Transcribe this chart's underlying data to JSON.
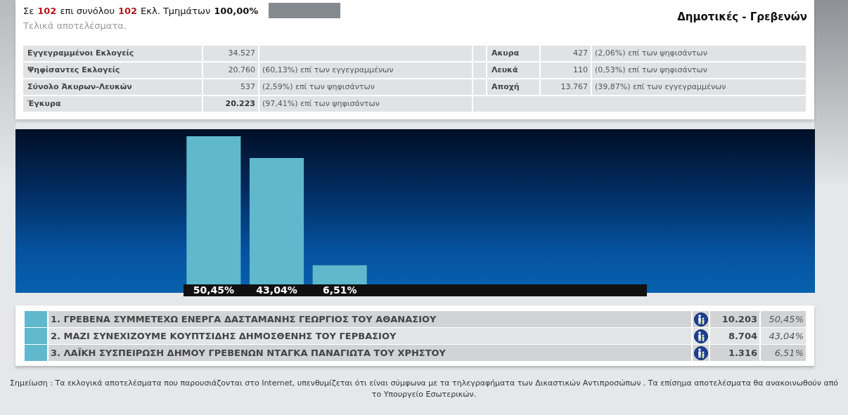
{
  "chart_data": {
    "type": "bar",
    "title": "Δημοτικές - Γρεβενών",
    "subtitle": "Τελικά αποτελέσματα.",
    "categories": [
      null,
      null,
      null
    ],
    "values": [
      50.45,
      43.04,
      6.51
    ],
    "color": "#60b8cd",
    "value_labels": [
      "50,45%",
      "43,04%",
      "6,51%"
    ],
    "tick_labels": false,
    "annotations": [
      "Σε",
      "102",
      "επι συνόλου",
      "102",
      "Εκλ. Τμημάτων",
      "100,00%",
      "Εγγεγραμμένοι Εκλογείς",
      "34.527",
      "Ψηφίσαντες Εκλογείς",
      "20.760",
      "(60,13%) επί των εγγεγραμμένων",
      "Σύνολο Άκυρων-Λευκών",
      "537",
      "(2,59%) επί των ψηφισάντων",
      "Έγκυρα",
      "20.223",
      "(97,41%) επί των ψηφισάντων",
      "Ακυρα",
      "427",
      "(2,06%) επί των ψηφισάντων",
      "Λευκά",
      "110",
      "(0,53%) επί των ψηφισάντων",
      "Αποχή",
      "13.767",
      "(39,87%) επί των εγγεγραμμένων",
      "10.203",
      "8.704",
      "1.316",
      "1. ΓΡΕΒΕΝΑ ΣΥΜΜΕΤΕΧΩ ΕΝΕΡΓΑ ΔΑΣΤΑΜΑΝΗΣ ΓΕΩΡΓΙΟΣ ΤΟΥ ΑΘΑΝΑΣΙΟΥ",
      "2. ΜΑΖΙ ΣΥΝΕΧΙΖΟΥΜΕ ΚΟΥΠΤΣΙΔΗΣ ΔΗΜΟΣΘΕΝΗΣ ΤΟΥ ΓΕΡΒΑΣΙΟΥ",
      "3. ΛΑΪΚΗ ΣΥΣΠΕΙΡΩΣΗ ΔΗΜΟΥ ΓΡΕΒΕΝΩΝ ΝΤΑΓΚΑ ΠΑΝΑΓΙΩΤΑ ΤΟΥ ΧΡΗΣΤΟΥ",
      "Σημείωση : Τα εκλογικά αποτελέσματα που παρουσιάζονται στο Internet, υπενθυμίζεται ότι είναι σύμφωνα με τα τηλεγραφήματα των Δικαστικών Αντιπροσώπων . Τα επίσημα αποτελέσματα θα ανακοινωθούν από το Υπουργείο Εσωτερικών."
    ]
  }
}
